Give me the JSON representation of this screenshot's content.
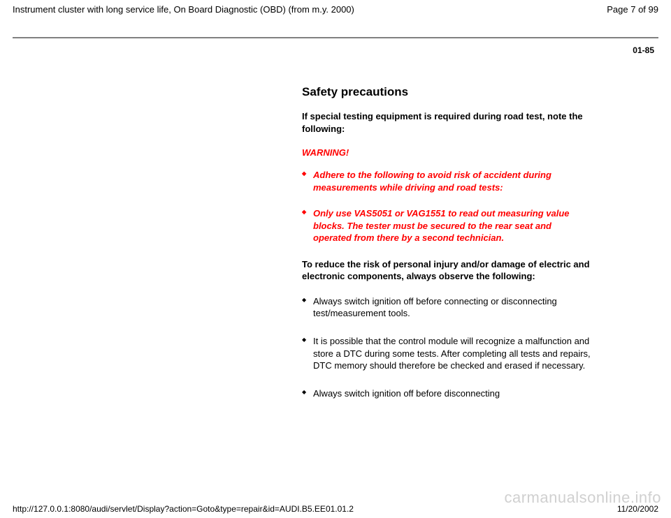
{
  "header": {
    "title": "Instrument cluster with long service life, On Board Diagnostic (OBD) (from m.y. 2000)",
    "page_label": "Page 7 of 99"
  },
  "section_ref": "01-85",
  "content": {
    "heading": "Safety precautions",
    "intro_bold": "If special testing equipment is required during road test, note the following:",
    "warning_label": "WARNING!",
    "warnings": [
      "Adhere to the following to avoid risk of accident during measurements while driving and road tests:",
      "Only use VAS5051 or VAG1551 to read out measuring value blocks. The tester must be secured to the rear seat and operated from there by a second technician."
    ],
    "reduce_risk": "To reduce the risk of personal injury and/or damage of electric and electronic components, always observe the following:",
    "notes": [
      "Always switch ignition off before connecting or disconnecting test/measurement tools.",
      "It is possible that the control module will recognize a malfunction and store a DTC during some tests. After completing all tests and repairs, DTC memory should therefore be checked and erased if necessary.",
      "Always switch ignition off before disconnecting"
    ]
  },
  "watermark": "carmanualsonline.info",
  "footer": {
    "url": "http://127.0.0.1:8080/audi/servlet/Display?action=Goto&type=repair&id=AUDI.B5.EE01.01.2",
    "date": "11/20/2002"
  },
  "colors": {
    "warning": "#ff0000",
    "rule": "#808080",
    "watermark": "#d0d0d0",
    "text": "#000000",
    "background": "#ffffff"
  }
}
